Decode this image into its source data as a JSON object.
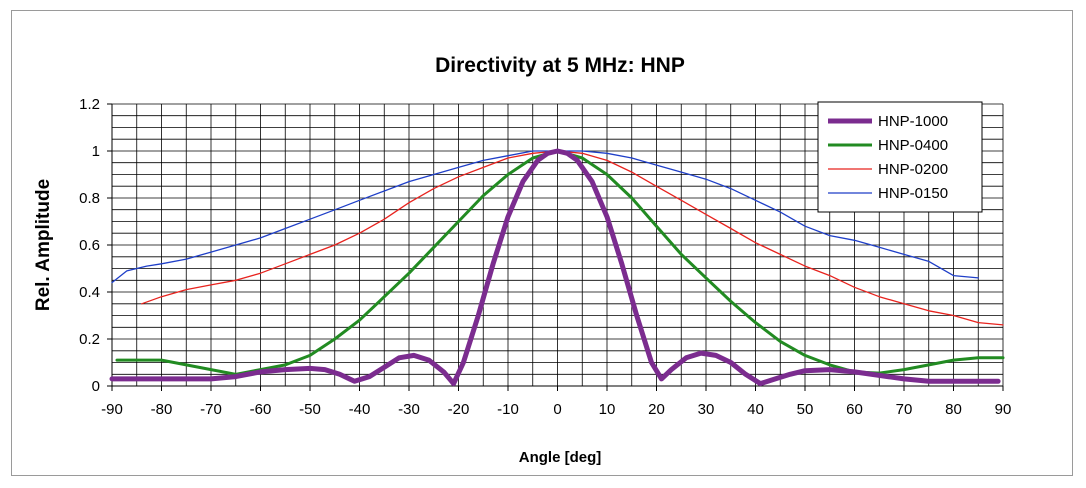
{
  "chart_data": {
    "type": "line",
    "title": "Directivity at 5 MHz: HNP",
    "xlabel": "Angle [deg]",
    "ylabel": "Rel. Amplitude",
    "xlim": [
      -90,
      90
    ],
    "ylim": [
      0,
      1.2
    ],
    "x_ticks": [
      "-90",
      "-80",
      "-70",
      "-60",
      "-50",
      "-40",
      "-30",
      "-20",
      "-10",
      "0",
      "10",
      "20",
      "30",
      "40",
      "50",
      "60",
      "70",
      "80",
      "90"
    ],
    "y_ticks": [
      "0",
      "0.2",
      "0.4",
      "0.6",
      "0.8",
      "1",
      "1.2"
    ],
    "grid": true,
    "legend_position": "top-right",
    "series": [
      {
        "name": "HNP-1000",
        "color": "#7b2c8f",
        "width": 5,
        "points": [
          [
            -90,
            0.03
          ],
          [
            -80,
            0.03
          ],
          [
            -70,
            0.03
          ],
          [
            -65,
            0.04
          ],
          [
            -60,
            0.06
          ],
          [
            -55,
            0.07
          ],
          [
            -50,
            0.075
          ],
          [
            -47,
            0.07
          ],
          [
            -44,
            0.05
          ],
          [
            -41,
            0.02
          ],
          [
            -38,
            0.04
          ],
          [
            -35,
            0.08
          ],
          [
            -32,
            0.12
          ],
          [
            -29,
            0.13
          ],
          [
            -26,
            0.11
          ],
          [
            -23,
            0.06
          ],
          [
            -21,
            0.01
          ],
          [
            -19,
            0.1
          ],
          [
            -16,
            0.3
          ],
          [
            -13,
            0.52
          ],
          [
            -10,
            0.72
          ],
          [
            -7,
            0.87
          ],
          [
            -4,
            0.96
          ],
          [
            -2,
            0.99
          ],
          [
            0,
            1.0
          ],
          [
            2,
            0.99
          ],
          [
            4,
            0.96
          ],
          [
            7,
            0.87
          ],
          [
            10,
            0.72
          ],
          [
            13,
            0.52
          ],
          [
            16,
            0.3
          ],
          [
            19,
            0.1
          ],
          [
            21,
            0.03
          ],
          [
            23,
            0.07
          ],
          [
            26,
            0.12
          ],
          [
            29,
            0.14
          ],
          [
            32,
            0.13
          ],
          [
            35,
            0.1
          ],
          [
            38,
            0.05
          ],
          [
            41,
            0.01
          ],
          [
            44,
            0.03
          ],
          [
            47,
            0.05
          ],
          [
            50,
            0.065
          ],
          [
            55,
            0.07
          ],
          [
            60,
            0.06
          ],
          [
            65,
            0.045
          ],
          [
            70,
            0.03
          ],
          [
            75,
            0.02
          ],
          [
            80,
            0.02
          ],
          [
            89,
            0.02
          ]
        ]
      },
      {
        "name": "HNP-0400",
        "color": "#228b22",
        "width": 3,
        "points": [
          [
            -89,
            0.11
          ],
          [
            -80,
            0.11
          ],
          [
            -75,
            0.09
          ],
          [
            -70,
            0.07
          ],
          [
            -65,
            0.05
          ],
          [
            -60,
            0.07
          ],
          [
            -55,
            0.09
          ],
          [
            -50,
            0.13
          ],
          [
            -45,
            0.2
          ],
          [
            -40,
            0.28
          ],
          [
            -35,
            0.38
          ],
          [
            -30,
            0.48
          ],
          [
            -25,
            0.59
          ],
          [
            -20,
            0.7
          ],
          [
            -15,
            0.81
          ],
          [
            -10,
            0.9
          ],
          [
            -5,
            0.97
          ],
          [
            0,
            1.0
          ],
          [
            5,
            0.97
          ],
          [
            10,
            0.9
          ],
          [
            15,
            0.8
          ],
          [
            20,
            0.68
          ],
          [
            25,
            0.56
          ],
          [
            30,
            0.46
          ],
          [
            35,
            0.36
          ],
          [
            40,
            0.27
          ],
          [
            45,
            0.19
          ],
          [
            50,
            0.13
          ],
          [
            55,
            0.09
          ],
          [
            60,
            0.06
          ],
          [
            65,
            0.055
          ],
          [
            70,
            0.07
          ],
          [
            75,
            0.09
          ],
          [
            80,
            0.11
          ],
          [
            85,
            0.12
          ],
          [
            90,
            0.12
          ]
        ]
      },
      {
        "name": "HNP-0200",
        "color": "#e8231e",
        "width": 1.3,
        "points": [
          [
            -84,
            0.35
          ],
          [
            -80,
            0.38
          ],
          [
            -75,
            0.41
          ],
          [
            -70,
            0.43
          ],
          [
            -65,
            0.45
          ],
          [
            -60,
            0.48
          ],
          [
            -55,
            0.52
          ],
          [
            -50,
            0.56
          ],
          [
            -45,
            0.6
          ],
          [
            -40,
            0.65
          ],
          [
            -35,
            0.71
          ],
          [
            -30,
            0.78
          ],
          [
            -25,
            0.84
          ],
          [
            -20,
            0.89
          ],
          [
            -15,
            0.93
          ],
          [
            -10,
            0.97
          ],
          [
            -5,
            0.99
          ],
          [
            0,
            1.0
          ],
          [
            5,
            0.99
          ],
          [
            10,
            0.96
          ],
          [
            15,
            0.91
          ],
          [
            20,
            0.85
          ],
          [
            25,
            0.79
          ],
          [
            30,
            0.73
          ],
          [
            35,
            0.67
          ],
          [
            40,
            0.61
          ],
          [
            45,
            0.56
          ],
          [
            50,
            0.51
          ],
          [
            55,
            0.47
          ],
          [
            60,
            0.42
          ],
          [
            65,
            0.38
          ],
          [
            70,
            0.35
          ],
          [
            75,
            0.32
          ],
          [
            80,
            0.3
          ],
          [
            85,
            0.27
          ],
          [
            90,
            0.26
          ]
        ]
      },
      {
        "name": "HNP-0150",
        "color": "#1f3fc8",
        "width": 1.3,
        "points": [
          [
            -90,
            0.44
          ],
          [
            -87,
            0.49
          ],
          [
            -83,
            0.51
          ],
          [
            -80,
            0.52
          ],
          [
            -75,
            0.54
          ],
          [
            -70,
            0.57
          ],
          [
            -65,
            0.6
          ],
          [
            -60,
            0.63
          ],
          [
            -55,
            0.67
          ],
          [
            -50,
            0.71
          ],
          [
            -45,
            0.75
          ],
          [
            -40,
            0.79
          ],
          [
            -35,
            0.83
          ],
          [
            -30,
            0.87
          ],
          [
            -25,
            0.9
          ],
          [
            -20,
            0.93
          ],
          [
            -15,
            0.96
          ],
          [
            -10,
            0.98
          ],
          [
            -5,
            1.0
          ],
          [
            0,
            1.0
          ],
          [
            5,
            1.0
          ],
          [
            10,
            0.99
          ],
          [
            15,
            0.97
          ],
          [
            20,
            0.94
          ],
          [
            25,
            0.91
          ],
          [
            30,
            0.88
          ],
          [
            35,
            0.84
          ],
          [
            40,
            0.79
          ],
          [
            45,
            0.74
          ],
          [
            50,
            0.68
          ],
          [
            55,
            0.64
          ],
          [
            60,
            0.62
          ],
          [
            65,
            0.59
          ],
          [
            70,
            0.56
          ],
          [
            75,
            0.53
          ],
          [
            80,
            0.47
          ],
          [
            85,
            0.46
          ]
        ]
      }
    ]
  }
}
